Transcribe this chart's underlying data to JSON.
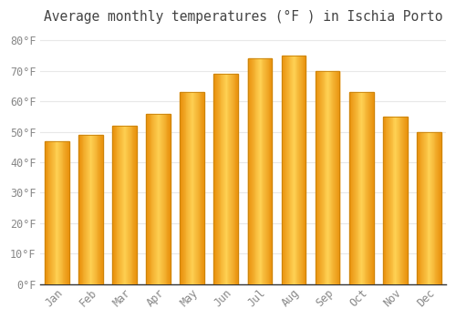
{
  "title": "Average monthly temperatures (°F ) in Ischia Porto",
  "months": [
    "Jan",
    "Feb",
    "Mar",
    "Apr",
    "May",
    "Jun",
    "Jul",
    "Aug",
    "Sep",
    "Oct",
    "Nov",
    "Dec"
  ],
  "values": [
    47,
    49,
    52,
    56,
    63,
    69,
    74,
    75,
    70,
    63,
    55,
    50
  ],
  "bar_color_left": "#F5A623",
  "bar_color_center": "#FFD055",
  "bar_color_right": "#F5A623",
  "bar_edge_color": "#C8820A",
  "yticks": [
    0,
    10,
    20,
    30,
    40,
    50,
    60,
    70,
    80
  ],
  "ytick_labels": [
    "0°F",
    "10°F",
    "20°F",
    "30°F",
    "40°F",
    "50°F",
    "60°F",
    "70°F",
    "80°F"
  ],
  "ylim": [
    0,
    83
  ],
  "background_color": "#ffffff",
  "grid_color": "#e8e8e8",
  "title_fontsize": 10.5,
  "tick_fontsize": 8.5,
  "tick_color": "#888888",
  "title_color": "#444444",
  "spine_color": "#333333"
}
